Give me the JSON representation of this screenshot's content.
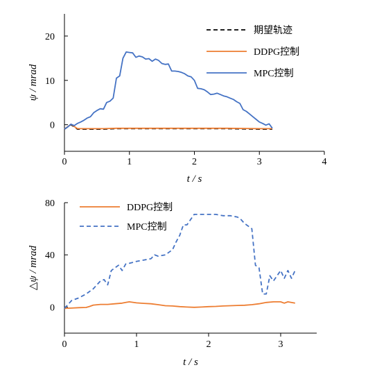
{
  "chart_data": [
    {
      "type": "line",
      "ylabel": "ψ / mrad",
      "xlabel": "t / s",
      "xlim": [
        0,
        4
      ],
      "ylim": [
        -6,
        25
      ],
      "xticks": [
        "0",
        "1",
        "2",
        "3",
        "4"
      ],
      "yticks": [
        "0",
        "10",
        "20"
      ],
      "legend_position": "top-right",
      "series": [
        {
          "name": "期望轨迹",
          "color": "#000000",
          "dash": "dashed",
          "x": [
            0,
            0.1,
            0.15,
            0.2,
            0.4,
            0.6,
            0.8,
            1.0,
            1.5,
            2.0,
            2.5,
            3.0,
            3.2
          ],
          "y": [
            -1.0,
            0.0,
            -0.5,
            -1.0,
            -1.0,
            -1.0,
            -0.9,
            -0.9,
            -0.9,
            -0.9,
            -0.9,
            -1.0,
            -1.0
          ]
        },
        {
          "name": "DDPG控制",
          "color": "#ED7D31",
          "dash": "solid",
          "x": [
            0,
            0.1,
            0.15,
            0.2,
            0.4,
            0.6,
            0.8,
            1.0,
            1.5,
            2.0,
            2.5,
            3.0,
            3.2
          ],
          "y": [
            -1.0,
            0.1,
            -0.4,
            -0.9,
            -0.9,
            -0.9,
            -0.8,
            -0.8,
            -0.8,
            -0.8,
            -0.8,
            -0.9,
            -0.9
          ]
        },
        {
          "name": "MPC控制",
          "color": "#4472C4",
          "dash": "solid",
          "x": [
            0,
            0.05,
            0.1,
            0.15,
            0.2,
            0.25,
            0.3,
            0.35,
            0.4,
            0.45,
            0.5,
            0.55,
            0.6,
            0.65,
            0.7,
            0.75,
            0.8,
            0.85,
            0.9,
            0.95,
            1.0,
            1.05,
            1.1,
            1.15,
            1.2,
            1.25,
            1.3,
            1.35,
            1.4,
            1.45,
            1.5,
            1.55,
            1.6,
            1.65,
            1.7,
            1.75,
            1.8,
            1.85,
            1.9,
            1.95,
            2.0,
            2.05,
            2.1,
            2.15,
            2.2,
            2.25,
            2.3,
            2.35,
            2.4,
            2.45,
            2.5,
            2.55,
            2.6,
            2.65,
            2.7,
            2.75,
            2.8,
            2.85,
            2.9,
            2.95,
            3.0,
            3.05,
            3.1,
            3.15,
            3.2
          ],
          "y": [
            -1.0,
            -0.5,
            0.1,
            -0.2,
            0.3,
            0.6,
            1.0,
            1.5,
            1.8,
            2.7,
            3.2,
            3.6,
            3.5,
            5.0,
            5.3,
            6.0,
            10.5,
            11.0,
            15.0,
            16.4,
            16.3,
            16.2,
            15.2,
            15.5,
            15.3,
            14.8,
            14.9,
            14.3,
            14.8,
            14.5,
            13.8,
            13.6,
            13.7,
            12.1,
            12.1,
            12.0,
            11.8,
            11.5,
            11.0,
            10.8,
            10.0,
            8.2,
            8.1,
            7.9,
            7.4,
            6.8,
            6.9,
            7.1,
            6.8,
            6.5,
            6.3,
            6.0,
            5.7,
            5.2,
            4.8,
            3.4,
            3.0,
            2.4,
            1.8,
            1.2,
            0.6,
            0.3,
            -0.1,
            0.2,
            -0.8
          ]
        }
      ]
    },
    {
      "type": "line",
      "ylabel": "△ψ / mrad",
      "xlabel": "t / s",
      "xlim": [
        0,
        3.5
      ],
      "ylim": [
        -20,
        80
      ],
      "xticks": [
        "0",
        "1",
        "2",
        "3"
      ],
      "yticks": [
        "0",
        "40",
        "80"
      ],
      "legend_position": "top-left",
      "series": [
        {
          "name": "DDPG控制",
          "color": "#ED7D31",
          "dash": "solid",
          "x": [
            0,
            0.1,
            0.2,
            0.3,
            0.35,
            0.4,
            0.5,
            0.6,
            0.7,
            0.8,
            0.85,
            0.9,
            1.0,
            1.1,
            1.2,
            1.3,
            1.4,
            1.5,
            1.6,
            1.7,
            1.8,
            1.9,
            2.0,
            2.1,
            2.2,
            2.3,
            2.4,
            2.5,
            2.6,
            2.7,
            2.8,
            2.9,
            3.0,
            3.05,
            3.1,
            3.2
          ],
          "y": [
            -1.0,
            -0.8,
            -0.5,
            -0.3,
            0.5,
            1.5,
            2.0,
            2.0,
            2.5,
            3.0,
            3.5,
            4.0,
            3.2,
            2.8,
            2.5,
            1.8,
            1.0,
            0.8,
            0.3,
            0.0,
            -0.2,
            0.0,
            0.3,
            0.5,
            0.8,
            1.0,
            1.2,
            1.4,
            1.8,
            2.5,
            3.5,
            4.0,
            4.0,
            3.0,
            4.0,
            3.0
          ]
        },
        {
          "name": "MPC控制",
          "color": "#4472C4",
          "dash": "dashed",
          "x": [
            0,
            0.05,
            0.1,
            0.2,
            0.3,
            0.4,
            0.45,
            0.5,
            0.55,
            0.6,
            0.65,
            0.7,
            0.75,
            0.8,
            0.85,
            0.9,
            1.0,
            1.1,
            1.2,
            1.25,
            1.3,
            1.35,
            1.4,
            1.5,
            1.55,
            1.6,
            1.65,
            1.7,
            1.75,
            1.8,
            1.85,
            1.9,
            2.0,
            2.1,
            2.2,
            2.3,
            2.4,
            2.45,
            2.5,
            2.55,
            2.6,
            2.65,
            2.7,
            2.75,
            2.8,
            2.85,
            2.9,
            2.95,
            3.0,
            3.05,
            3.1,
            3.15,
            3.2
          ],
          "y": [
            -1.0,
            2.0,
            5.0,
            7.0,
            10.0,
            14.0,
            17.0,
            20.0,
            21.0,
            17.0,
            28.0,
            30.0,
            32.0,
            28.0,
            33.0,
            33.5,
            35.0,
            36.0,
            37.0,
            40.0,
            39.0,
            39.5,
            40.0,
            44.0,
            50.0,
            55.0,
            63.0,
            63.0,
            67.0,
            71.0,
            71.0,
            71.0,
            71.0,
            71.0,
            70.0,
            70.0,
            69.0,
            67.0,
            64.0,
            62.0,
            60.0,
            32.0,
            30.0,
            10.0,
            10.0,
            24.0,
            20.0,
            24.0,
            28.0,
            22.0,
            28.0,
            22.0,
            28.0
          ]
        }
      ]
    }
  ]
}
